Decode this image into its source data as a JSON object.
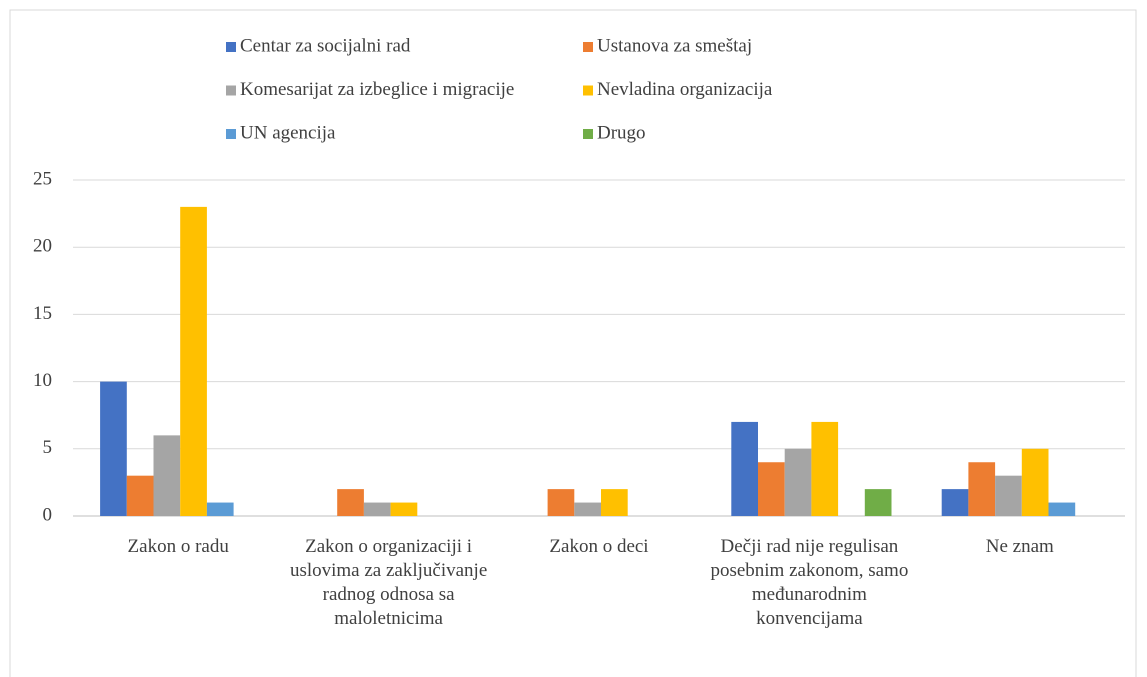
{
  "chart_data": {
    "type": "bar",
    "categories": [
      "Zakon o radu",
      "Zakon o organizaciji i uslovima za zaključivanje radnog odnosa sa maloletnicima",
      "Zakon o deci",
      "Dečji rad nije regulisan posebnim zakonom, samo međunarodnim konvencijama",
      "Ne znam"
    ],
    "series": [
      {
        "name": "Centar za socijalni rad",
        "color": "#4472c4",
        "values": [
          10,
          0,
          0,
          7,
          2
        ]
      },
      {
        "name": "Ustanova za smeštaj",
        "color": "#ed7d31",
        "values": [
          3,
          2,
          2,
          4,
          4
        ]
      },
      {
        "name": "Komesarijat za izbeglice i migracije",
        "color": "#a5a5a5",
        "values": [
          6,
          1,
          1,
          5,
          3
        ]
      },
      {
        "name": "Nevladina organizacija",
        "color": "#ffc000",
        "values": [
          23,
          1,
          2,
          7,
          5
        ]
      },
      {
        "name": "UN agencija",
        "color": "#5b9bd5",
        "values": [
          1,
          0,
          0,
          0,
          1
        ]
      },
      {
        "name": "Drugo",
        "color": "#70ad47",
        "values": [
          0,
          0,
          0,
          2,
          0
        ]
      }
    ],
    "ylim": [
      0,
      25
    ],
    "yticks": [
      0,
      5,
      10,
      15,
      20,
      25
    ],
    "grid": true,
    "legend": "top"
  }
}
